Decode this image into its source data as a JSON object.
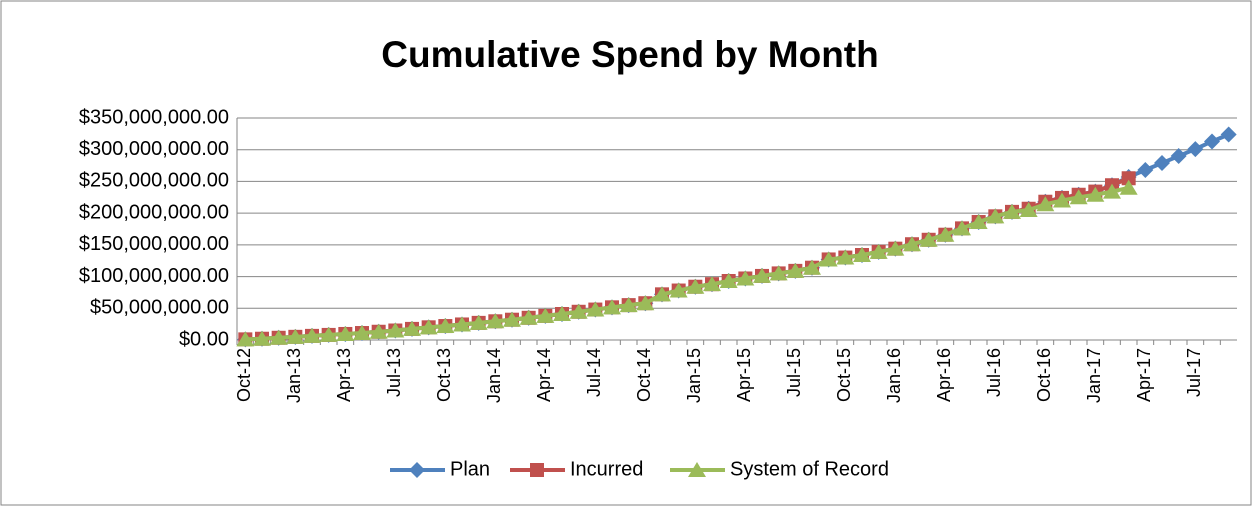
{
  "chart_data": {
    "type": "line",
    "title": "Cumulative Spend by Month",
    "categories": [
      "Oct-12",
      null,
      null,
      "Jan-13",
      null,
      null,
      "Apr-13",
      null,
      null,
      "Jul-13",
      null,
      null,
      "Oct-13",
      null,
      null,
      "Jan-14",
      null,
      null,
      "Apr-14",
      null,
      null,
      "Jul-14",
      null,
      null,
      "Oct-14",
      null,
      null,
      "Jan-15",
      null,
      null,
      "Apr-15",
      null,
      null,
      "Jul-15",
      null,
      null,
      "Oct-15",
      null,
      null,
      "Jan-16",
      null,
      null,
      "Apr-16",
      null,
      null,
      "Jul-16",
      null,
      null,
      "Oct-16",
      null,
      null,
      "Jan-17",
      null,
      null,
      "Apr-17",
      null,
      null,
      "Jul-17",
      null,
      null
    ],
    "series": [
      {
        "name": "Plan",
        "color": "#4f81bd",
        "marker": "diamond",
        "values": [
          1000000.0,
          2000000.0,
          3500000.0,
          5000000.0,
          6500000.0,
          8000000.0,
          9500000.0,
          11000000.0,
          13000000.0,
          15000000.0,
          17500000.0,
          20000000.0,
          22000000.0,
          24500000.0,
          27000000.0,
          29500000.0,
          32000000.0,
          35000000.0,
          38000000.0,
          41000000.0,
          44500000.0,
          48000000.0,
          51500000.0,
          55000000.0,
          58000000.0,
          72000000.0,
          78000000.0,
          84000000.0,
          88000000.0,
          93000000.0,
          97000000.0,
          101000000.0,
          105000000.0,
          109000000.0,
          114000000.0,
          127000000.0,
          130000000.0,
          134000000.0,
          139000000.0,
          144000000.0,
          151000000.0,
          158000000.0,
          166000000.0,
          176000000.0,
          186000000.0,
          195000000.0,
          202000000.0,
          207000000.0,
          218000000.0,
          224000000.0,
          229000000.0,
          234000000.0,
          244000000.0,
          257000000.0,
          268000000.0,
          279000000.0,
          290000000.0,
          301000000.0,
          313000000.0,
          324000000.0
        ]
      },
      {
        "name": "Incurred",
        "color": "#c0504d",
        "marker": "square",
        "values": [
          1000000.0,
          2000000.0,
          3500000.0,
          5000000.0,
          6500000.0,
          8000000.0,
          9500000.0,
          11000000.0,
          13000000.0,
          15000000.0,
          17500000.0,
          20000000.0,
          22000000.0,
          24500000.0,
          27000000.0,
          29500000.0,
          32000000.0,
          35000000.0,
          38000000.0,
          41000000.0,
          44500000.0,
          48000000.0,
          51500000.0,
          55000000.0,
          58000000.0,
          72000000.0,
          78000000.0,
          84000000.0,
          88000000.0,
          93000000.0,
          97000000.0,
          101000000.0,
          105000000.0,
          109000000.0,
          114000000.0,
          127000000.0,
          130000000.0,
          134000000.0,
          139000000.0,
          144000000.0,
          151000000.0,
          158000000.0,
          166000000.0,
          176000000.0,
          186000000.0,
          195000000.0,
          202000000.0,
          207000000.0,
          218000000.0,
          224000000.0,
          229000000.0,
          234000000.0,
          244000000.0,
          255000000.0,
          null,
          null,
          null,
          null,
          null,
          null
        ]
      },
      {
        "name": "System of Record",
        "color": "#9bbb59",
        "marker": "triangle",
        "values": [
          1000000.0,
          2000000.0,
          3500000.0,
          5000000.0,
          6500000.0,
          8000000.0,
          9500000.0,
          11000000.0,
          13000000.0,
          15000000.0,
          17500000.0,
          20000000.0,
          22000000.0,
          24500000.0,
          27000000.0,
          29500000.0,
          32000000.0,
          35000000.0,
          38000000.0,
          41000000.0,
          44500000.0,
          48000000.0,
          51500000.0,
          55000000.0,
          58000000.0,
          72000000.0,
          78000000.0,
          84000000.0,
          88000000.0,
          93000000.0,
          97000000.0,
          101000000.0,
          105000000.0,
          109000000.0,
          114000000.0,
          127000000.0,
          130000000.0,
          134000000.0,
          139000000.0,
          144000000.0,
          151000000.0,
          158000000.0,
          166000000.0,
          176000000.0,
          186000000.0,
          195000000.0,
          202000000.0,
          205000000.0,
          214000000.0,
          220000000.0,
          225000000.0,
          229000000.0,
          234000000.0,
          240000000.0,
          null,
          null,
          null,
          null,
          null,
          null
        ]
      }
    ],
    "ylim": [
      0,
      350000000
    ],
    "yticks": [
      {
        "value": 0,
        "label": "$0.00"
      },
      {
        "value": 50000000,
        "label": "$50,000,000.00"
      },
      {
        "value": 100000000,
        "label": "$100,000,000.00"
      },
      {
        "value": 150000000,
        "label": "$150,000,000.00"
      },
      {
        "value": 200000000,
        "label": "$200,000,000.00"
      },
      {
        "value": 250000000,
        "label": "$250,000,000.00"
      },
      {
        "value": 300000000,
        "label": "$300,000,000.00"
      },
      {
        "value": 350000000,
        "label": "$350,000,000.00"
      }
    ],
    "grid": true,
    "legend": "bottom"
  }
}
